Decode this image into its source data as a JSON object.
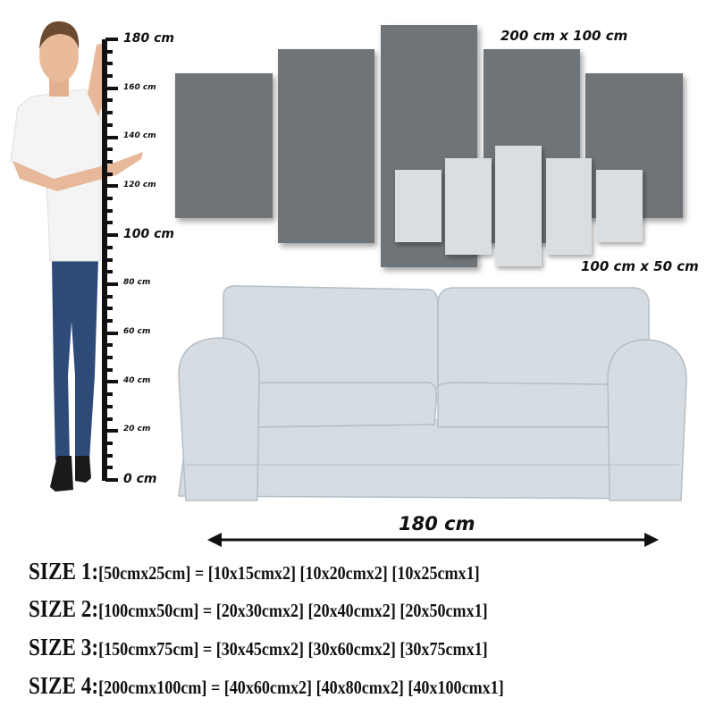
{
  "ruler": {
    "labels": [
      "180 cm",
      "160 cm",
      "140 cm",
      "120 cm",
      "100 cm",
      "80 cm",
      "60 cm",
      "40 cm",
      "20 cm",
      "0 cm"
    ]
  },
  "canvas_set": {
    "large_label": "200 cm x 100 cm",
    "small_label": "100 cm x 50 cm",
    "large_color": "#6f7478",
    "small_color": "#d9dee3"
  },
  "sofa": {
    "width_label": "180 cm",
    "color": "#d5dde2"
  },
  "sizes": [
    {
      "key": "SIZE 1:",
      "value": "[50cmx25cm] = [10x15cmx2] [10x20cmx2] [10x25cmx1]"
    },
    {
      "key": "SIZE 2:",
      "value": "[100cmx50cm] = [20x30cmx2] [20x40cmx2] [20x50cmx1]"
    },
    {
      "key": "SIZE 3:",
      "value": "[150cmx75cm] = [30x45cmx2] [30x60cmx2] [30x75cmx1]"
    },
    {
      "key": "SIZE 4:",
      "value": "[200cmx100cm] = [40x60cmx2] [40x80cmx2] [40x100cmx1]"
    }
  ]
}
